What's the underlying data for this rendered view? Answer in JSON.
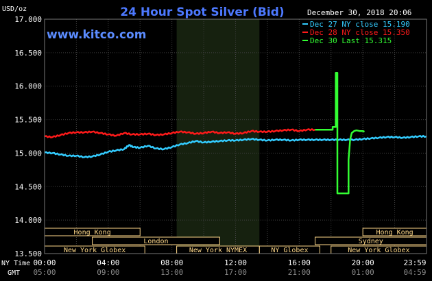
{
  "header": {
    "ylabel": "USD/oz",
    "title": "24 Hour Spot Silver (Bid)",
    "datetime": "December 30, 2018 20:06",
    "watermark": "www.kitco.com"
  },
  "legend": [
    {
      "label": "Dec 27 NY close 15.190",
      "color": "#33ccff"
    },
    {
      "label": "Dec 28 NY close 15.350",
      "color": "#ff1a1a"
    },
    {
      "label": "Dec 30 Last 15.315",
      "color": "#33ff33"
    }
  ],
  "colors": {
    "background": "#000000",
    "plot": "#000000",
    "shade": "#16210f",
    "grid": "#404040",
    "axis_text": "#ffffff",
    "title": "#4d79ff",
    "watermark": "#5b8cff",
    "session_bar": "#ffd98a"
  },
  "sessions": {
    "row1": [
      {
        "label": "Hong Kong",
        "start": 0,
        "end": 6
      },
      {
        "label": "Hong Kong",
        "start": 20,
        "end": 24
      }
    ],
    "row2": [
      {
        "label": "London",
        "start": 3,
        "end": 11
      },
      {
        "label": "Sydney",
        "start": 17,
        "end": 24
      }
    ],
    "row3": [
      {
        "label": "New York Globex",
        "start": 0,
        "end": 6.3
      },
      {
        "label": "New York NYMEX",
        "start": 8.3,
        "end": 13.5
      },
      {
        "label": "NY Globex",
        "start": 13.5,
        "end": 17.3
      },
      {
        "label": "New York Globex",
        "start": 18,
        "end": 24
      }
    ]
  },
  "time_axis": {
    "ny_label": "NY Time",
    "gmt_label": "GMT",
    "ny_ticks": [
      "00:00",
      "04:00",
      "08:00",
      "12:00",
      "16:00",
      "20:00",
      "23:59"
    ],
    "gmt_ticks": [
      "05:00",
      "09:00",
      "13:00",
      "17:00",
      "21:00",
      "01:00",
      "04:59"
    ]
  },
  "chart_data": {
    "type": "line",
    "title": "24 Hour Spot Silver (Bid)",
    "ylabel": "USD/oz",
    "xlabel": "",
    "x_unit": "hours NY time",
    "xlim": [
      0,
      24
    ],
    "ylim": [
      13.5,
      17.0
    ],
    "yticks": [
      "17.000",
      "16.500",
      "16.000",
      "15.500",
      "15.000",
      "14.500",
      "14.000",
      "13.500"
    ],
    "shaded_hours": [
      8.3,
      13.5
    ],
    "grid": true,
    "series": [
      {
        "name": "Dec 27 NY close 15.190",
        "color": "#33ccff",
        "x": [
          0,
          0.5,
          1,
          1.5,
          2,
          2.5,
          3,
          3.5,
          4,
          4.5,
          5,
          5.3,
          5.6,
          6,
          6.5,
          7,
          7.5,
          8,
          8.5,
          9,
          9.5,
          10,
          10.5,
          11,
          11.5,
          12,
          12.5,
          13,
          13.5,
          14,
          14.5,
          15,
          15.5,
          16,
          16.5,
          17,
          17.5,
          18,
          18.5,
          19,
          19.5,
          20,
          20.5,
          21,
          21.5,
          22,
          22.5,
          23,
          23.5,
          23.99
        ],
        "y": [
          15.01,
          15.0,
          14.98,
          14.96,
          14.96,
          14.94,
          14.95,
          14.98,
          15.02,
          15.04,
          15.06,
          15.12,
          15.09,
          15.08,
          15.11,
          15.07,
          15.06,
          15.09,
          15.13,
          15.15,
          15.18,
          15.16,
          15.17,
          15.18,
          15.19,
          15.19,
          15.2,
          15.21,
          15.2,
          15.19,
          15.2,
          15.2,
          15.19,
          15.2,
          15.2,
          15.2,
          15.2,
          15.2,
          15.2,
          15.2,
          15.2,
          15.21,
          15.22,
          15.23,
          15.24,
          15.24,
          15.23,
          15.24,
          15.25,
          15.25
        ]
      },
      {
        "name": "Dec 28 NY close 15.350",
        "color": "#ff1a1a",
        "x": [
          0,
          0.5,
          1,
          1.5,
          2,
          2.5,
          3,
          3.5,
          4,
          4.5,
          5,
          5.5,
          6,
          6.5,
          7,
          7.5,
          8,
          8.5,
          9,
          9.5,
          10,
          10.5,
          11,
          11.5,
          12,
          12.5,
          13,
          13.5,
          14,
          14.5,
          15,
          15.5,
          16,
          16.5,
          17
        ],
        "y": [
          15.25,
          15.24,
          15.27,
          15.3,
          15.31,
          15.31,
          15.32,
          15.3,
          15.28,
          15.26,
          15.3,
          15.28,
          15.28,
          15.29,
          15.27,
          15.28,
          15.3,
          15.32,
          15.31,
          15.29,
          15.3,
          15.32,
          15.3,
          15.31,
          15.29,
          15.3,
          15.33,
          15.32,
          15.32,
          15.33,
          15.34,
          15.35,
          15.33,
          15.35,
          15.35
        ]
      },
      {
        "name": "Dec 30 Last 15.315",
        "color": "#33ff33",
        "x": [
          17,
          18.1,
          18.1,
          18.3,
          18.3,
          18.4,
          18.4,
          18.5,
          18.5,
          19.1,
          19.1,
          19.2,
          19.3,
          19.45,
          19.6,
          19.8,
          20.0,
          20.1
        ],
        "y": [
          15.35,
          15.35,
          15.39,
          15.39,
          16.2,
          16.2,
          14.4,
          14.4,
          14.4,
          14.4,
          14.9,
          15.2,
          15.3,
          15.33,
          15.34,
          15.33,
          15.33,
          15.32
        ]
      }
    ]
  }
}
